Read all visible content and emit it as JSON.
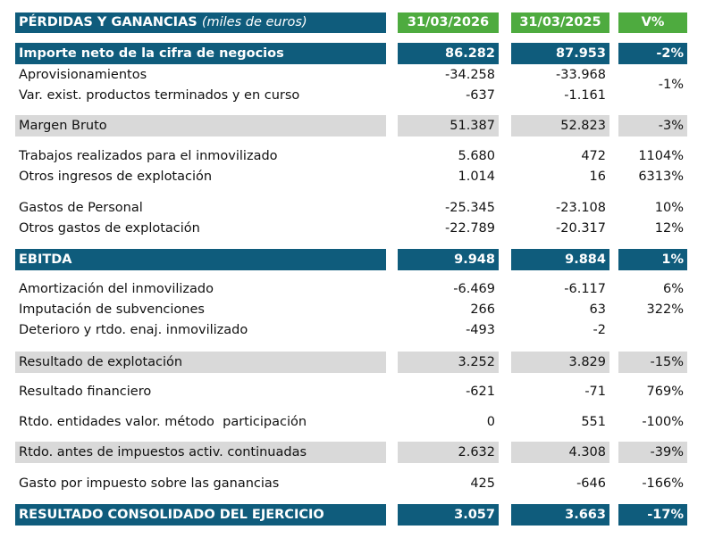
{
  "header": {
    "title": "PÉRDIDAS Y GANANCIAS",
    "subtitle": "(miles de euros)",
    "col1": "31/03/2026",
    "col2": "31/03/2025",
    "col3": "V%"
  },
  "rows": [
    {
      "label": "Importe neto de la cifra de negocios",
      "v1": "86.282",
      "v2": "87.953",
      "v3": "-2%"
    },
    {
      "label": "Aprovisionamientos",
      "v1": "-34.258",
      "v2": "-33.968",
      "v3": ""
    },
    {
      "label": "Var. exist. productos terminados y en curso",
      "v1": "-637",
      "v2": "-1.161",
      "v3": ""
    },
    {
      "label": "Margen Bruto",
      "v1": "51.387",
      "v2": "52.823",
      "v3": "-3%"
    },
    {
      "label": "Trabajos realizados para el inmovilizado",
      "v1": "5.680",
      "v2": "472",
      "v3": "1104%"
    },
    {
      "label": "Otros ingresos de explotación",
      "v1": "1.014",
      "v2": "16",
      "v3": "6313%"
    },
    {
      "label": "Gastos de Personal",
      "v1": "-25.345",
      "v2": "-23.108",
      "v3": "10%"
    },
    {
      "label": "Otros gastos de explotación",
      "v1": "-22.789",
      "v2": "-20.317",
      "v3": "12%"
    },
    {
      "label": "EBITDA",
      "v1": "9.948",
      "v2": "9.884",
      "v3": "1%"
    },
    {
      "label": "Amortización del inmovilizado",
      "v1": "-6.469",
      "v2": "-6.117",
      "v3": "6%"
    },
    {
      "label": "Imputación de subvenciones",
      "v1": "266",
      "v2": "63",
      "v3": "322%"
    },
    {
      "label": "Deterioro y rtdo. enaj. inmovilizado",
      "v1": "-493",
      "v2": "-2",
      "v3": ""
    },
    {
      "label": "Resultado de explotación",
      "v1": "3.252",
      "v2": "3.829",
      "v3": "-15%"
    },
    {
      "label": "Resultado financiero",
      "v1": "-621",
      "v2": "-71",
      "v3": "769%"
    },
    {
      "label": "Rtdo. entidades valor. método  participación",
      "v1": "0",
      "v2": "551",
      "v3": "-100%"
    },
    {
      "label": "Rtdo. antes de impuestos activ. continuadas",
      "v1": "2.632",
      "v2": "4.308",
      "v3": "-39%"
    },
    {
      "label": "Gasto por impuesto sobre las ganancias",
      "v1": "425",
      "v2": "-646",
      "v3": "-166%"
    },
    {
      "label": "RESULTADO CONSOLIDADO DEL EJERCICIO",
      "v1": "3.057",
      "v2": "3.663",
      "v3": "-17%"
    }
  ],
  "merged_v3": "-1%"
}
